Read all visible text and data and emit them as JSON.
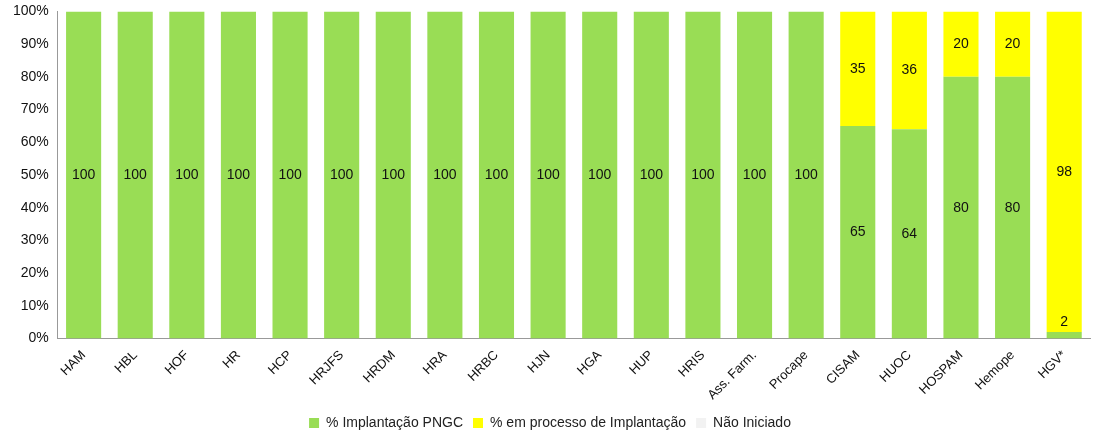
{
  "chart_data": {
    "type": "bar",
    "stacked": true,
    "categories": [
      "HAM",
      "HBL",
      "HOF",
      "HR",
      "HCP",
      "HRJFS",
      "HRDM",
      "HRA",
      "HRBC",
      "HJN",
      "HGA",
      "HUP",
      "HRIS",
      "Ass. Farm.",
      "Procape",
      "CISAM",
      "HUOC",
      "HOSPAM",
      "Hemope",
      "HGV*"
    ],
    "series": [
      {
        "name": "% Implantação PNGC",
        "color": "#99dd55",
        "values": [
          100,
          100,
          100,
          100,
          100,
          100,
          100,
          100,
          100,
          100,
          100,
          100,
          100,
          100,
          100,
          65,
          64,
          80,
          80,
          2
        ]
      },
      {
        "name": "% em processo de Implantação",
        "color": "#ffff00",
        "values": [
          null,
          null,
          null,
          null,
          null,
          null,
          null,
          null,
          null,
          null,
          null,
          null,
          null,
          null,
          null,
          35,
          36,
          20,
          20,
          98
        ]
      },
      {
        "name": "Não Iniciado",
        "color": "#f2f2f2",
        "values": [
          null,
          null,
          null,
          null,
          null,
          null,
          null,
          null,
          null,
          null,
          null,
          null,
          null,
          null,
          null,
          null,
          null,
          null,
          null,
          null
        ]
      }
    ],
    "ylim": [
      0,
      100
    ],
    "yticks": [
      {
        "value": 0,
        "label": "0%"
      },
      {
        "value": 10,
        "label": "10%"
      },
      {
        "value": 20,
        "label": "20%"
      },
      {
        "value": 30,
        "label": "30%"
      },
      {
        "value": 40,
        "label": "40%"
      },
      {
        "value": 50,
        "label": "50%"
      },
      {
        "value": 60,
        "label": "60%"
      },
      {
        "value": 70,
        "label": "70%"
      },
      {
        "value": 80,
        "label": "80%"
      },
      {
        "value": 90,
        "label": "90%"
      },
      {
        "value": 100,
        "label": "100%"
      }
    ],
    "data_labels": true,
    "grid": false,
    "legend": "bottom"
  }
}
